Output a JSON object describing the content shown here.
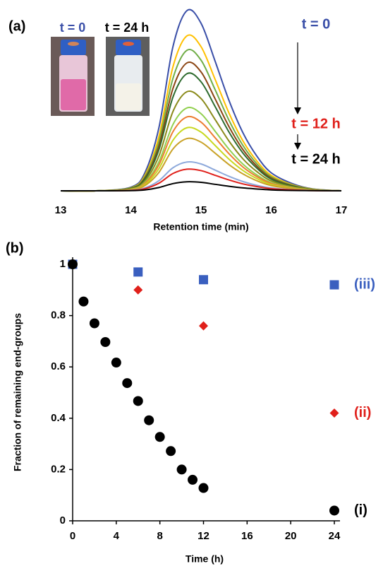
{
  "chart_data": [
    {
      "type": "line",
      "panel_label": "(a)",
      "annotations": [
        "t = 0",
        "t = 24 h",
        "t = 0",
        "t = 12 h",
        "t = 24 h"
      ],
      "xlabel": "Retention time (min)",
      "xlim": [
        13,
        17
      ],
      "xticks": [
        13,
        14,
        15,
        16,
        17
      ],
      "ylim": [
        0,
        100
      ],
      "x": [
        13,
        13.5,
        14,
        14.2,
        14.4,
        14.6,
        14.8,
        15.0,
        15.2,
        15.4,
        15.6,
        15.8,
        16.0,
        16.3,
        16.6,
        17
      ],
      "series": [
        {
          "color": "#3a4fa8",
          "values": [
            0,
            0,
            2,
            10,
            35,
            80,
            100,
            93,
            72,
            50,
            32,
            19,
            10,
            4,
            1,
            0
          ]
        },
        {
          "color": "#ffc000",
          "values": [
            0,
            0,
            1.7,
            8.6,
            30.1,
            68.8,
            86,
            80,
            61.9,
            43,
            27.5,
            16.3,
            8.6,
            3.4,
            0.9,
            0
          ]
        },
        {
          "color": "#70ad47",
          "values": [
            0,
            0,
            1.6,
            7.8,
            27.3,
            62.4,
            78,
            72.5,
            56.2,
            39,
            25,
            14.8,
            7.8,
            3.1,
            0.8,
            0
          ]
        },
        {
          "color": "#8b4513",
          "values": [
            0,
            0,
            1.4,
            7.1,
            24.9,
            56.8,
            71,
            66,
            51.1,
            35.5,
            22.7,
            13.5,
            7.1,
            2.8,
            0.7,
            0
          ]
        },
        {
          "color": "#2e6b2e",
          "values": [
            0,
            0,
            1.3,
            6.5,
            22.8,
            52,
            65,
            60.5,
            46.8,
            32.5,
            20.8,
            12.4,
            6.5,
            2.6,
            0.7,
            0
          ]
        },
        {
          "color": "#8a8a1a",
          "values": [
            0,
            0,
            1.1,
            5.5,
            19.3,
            44,
            55,
            51.2,
            39.6,
            27.5,
            17.6,
            10.5,
            5.5,
            2.2,
            0.6,
            0
          ]
        },
        {
          "color": "#92d050",
          "values": [
            0,
            0,
            0.9,
            4.6,
            16.1,
            36.8,
            46,
            42.8,
            33.1,
            23,
            14.7,
            8.7,
            4.6,
            1.8,
            0.5,
            0
          ]
        },
        {
          "color": "#ed7d31",
          "values": [
            0,
            0,
            0.8,
            4.1,
            14.4,
            32.8,
            41,
            38.1,
            29.5,
            20.5,
            13.1,
            7.8,
            4.1,
            1.6,
            0.4,
            0
          ]
        },
        {
          "color": "#c8d820",
          "values": [
            0,
            0,
            0.7,
            3.5,
            12.3,
            28,
            35,
            32.6,
            25.2,
            17.5,
            11.2,
            6.7,
            3.5,
            1.4,
            0.4,
            0
          ]
        },
        {
          "color": "#c9a227",
          "values": [
            0,
            0,
            0.6,
            2.9,
            10.2,
            23.2,
            29,
            27,
            20.9,
            14.5,
            9.3,
            5.5,
            2.9,
            1.2,
            0.3,
            0
          ]
        },
        {
          "color": "#8ea9db",
          "values": [
            0,
            0,
            0.3,
            1.6,
            5.6,
            12.8,
            16,
            14.9,
            11.5,
            8,
            5.1,
            3,
            1.6,
            0.6,
            0.2,
            0
          ]
        },
        {
          "color": "#e0201b",
          "values": [
            0,
            0,
            0.2,
            1.2,
            4.2,
            9.6,
            12,
            11.2,
            8.6,
            6,
            3.8,
            2.3,
            1.2,
            0.5,
            0.1,
            0
          ]
        },
        {
          "color": "#000000",
          "values": [
            0,
            0,
            0.1,
            0.5,
            1.8,
            4,
            5,
            4.7,
            3.6,
            2.5,
            1.6,
            1,
            0.5,
            0.2,
            0.1,
            0
          ]
        }
      ]
    },
    {
      "type": "scatter",
      "panel_label": "(b)",
      "xlabel": "Time (h)",
      "ylabel": "Fraction of remaining end-groups",
      "xlim": [
        0,
        24
      ],
      "xticks": [
        0,
        4,
        8,
        12,
        16,
        20,
        24
      ],
      "ylim": [
        0,
        1
      ],
      "yticks": [
        0,
        0.2,
        0.4,
        0.6,
        0.8,
        1
      ],
      "series": [
        {
          "name": "(iii)",
          "color": "#3a5fbf",
          "marker": "square",
          "x": [
            0,
            6,
            12,
            24
          ],
          "values": [
            1.0,
            0.97,
            0.94,
            0.92
          ]
        },
        {
          "name": "(ii)",
          "color": "#e0201b",
          "marker": "diamond",
          "x": [
            0,
            6,
            12,
            24
          ],
          "values": [
            1.0,
            0.9,
            0.76,
            0.42
          ]
        },
        {
          "name": "(i)",
          "color": "#000000",
          "marker": "circle",
          "x": [
            0,
            1,
            2,
            3,
            4,
            5,
            6,
            7,
            8,
            9,
            10,
            11,
            12,
            24
          ],
          "values": [
            1.0,
            0.855,
            0.77,
            0.697,
            0.617,
            0.537,
            0.467,
            0.392,
            0.327,
            0.272,
            0.2,
            0.16,
            0.128,
            0.04
          ]
        }
      ]
    }
  ]
}
